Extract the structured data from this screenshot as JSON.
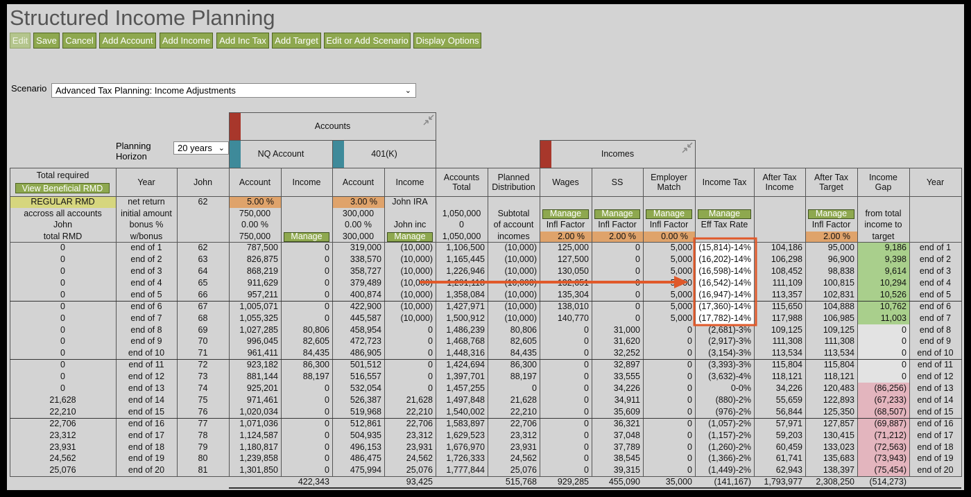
{
  "header": {
    "title": "Structured Income Planning",
    "buttons": [
      "Edit",
      "Save",
      "Cancel",
      "Add Account",
      "Add Income",
      "Add Inc Tax",
      "Add Target",
      "Edit or Add Scenario",
      "Display Options"
    ]
  },
  "scenario": {
    "label": "Scenario",
    "value": "Advanced Tax Planning: Income Adjustments"
  },
  "planning_horizon": {
    "label": "Planning Horizon",
    "value": "20 years"
  },
  "groups": {
    "accounts": "Accounts",
    "nq_account": "NQ Account",
    "k401": "401(K)",
    "incomes": "Incomes"
  },
  "table": {
    "view_rmd_button": "View Beneficial RMD",
    "columns": [
      "Total required",
      "Year",
      "John",
      "Account",
      "Income",
      "Account",
      "Income",
      "Accounts Total",
      "Planned Distribution",
      "Wages",
      "SS",
      "Employer Match",
      "Income Tax",
      "After Tax Income",
      "After Tax Target",
      "Income Gap",
      "Year"
    ],
    "setup_rows": [
      [
        "REGULAR RMD",
        "net return",
        "62",
        "5.00 %",
        null,
        "3.00 %",
        "John IRA",
        null,
        null,
        null,
        null,
        null,
        null,
        null,
        null,
        null,
        null
      ],
      [
        "accross all accounts",
        "initial amount",
        null,
        "750,000",
        null,
        "300,000",
        null,
        "1,050,000",
        "Subtotal",
        "Manage",
        "Manage",
        "Manage",
        "Manage",
        null,
        "Manage",
        "from total",
        null
      ],
      [
        "John",
        "bonus %",
        null,
        "0.00 %",
        null,
        "0.00 %",
        "John inc",
        "0",
        "of account",
        "Infl Factor",
        "Infl Factor",
        "Infl Factor",
        "Eff Tax Rate",
        null,
        "Infl Factor",
        "income to",
        null
      ],
      [
        "total RMD",
        "w/bonus",
        null,
        "750,000",
        "Manage",
        "300,000",
        "Manage",
        "1,050,000",
        "incomes",
        "2.00 %",
        "2.00 %",
        "0.00 %",
        null,
        null,
        "2.00 %",
        "target",
        null
      ]
    ],
    "rows": [
      [
        "0",
        "end of 1",
        "62",
        "787,500",
        "0",
        "319,000",
        "(10,000)",
        "1,106,500",
        "(10,000)",
        "125,000",
        "0",
        "5,000",
        "(15,814)-14%",
        "104,186",
        "95,000",
        "9,186",
        "end of 1"
      ],
      [
        "0",
        "end of 2",
        "63",
        "826,875",
        "0",
        "338,570",
        "(10,000)",
        "1,165,445",
        "(10,000)",
        "127,500",
        "0",
        "5,000",
        "(16,202)-14%",
        "106,298",
        "96,900",
        "9,398",
        "end of 2"
      ],
      [
        "0",
        "end of 3",
        "64",
        "868,219",
        "0",
        "358,727",
        "(10,000)",
        "1,226,946",
        "(10,000)",
        "130,050",
        "0",
        "5,000",
        "(16,598)-14%",
        "108,452",
        "98,838",
        "9,614",
        "end of 3"
      ],
      [
        "0",
        "end of 4",
        "65",
        "911,629",
        "0",
        "379,489",
        "(10,000)",
        "1,291,118",
        "(10,000)",
        "132,651",
        "0",
        "5,000",
        "(16,542)-14%",
        "111,109",
        "100,815",
        "10,294",
        "end of 4"
      ],
      [
        "0",
        "end of 5",
        "66",
        "957,211",
        "0",
        "400,874",
        "(10,000)",
        "1,358,084",
        "(10,000)",
        "135,304",
        "0",
        "5,000",
        "(16,947)-14%",
        "113,357",
        "102,831",
        "10,526",
        "end of 5"
      ],
      [
        "0",
        "end of 6",
        "67",
        "1,005,071",
        "0",
        "422,900",
        "(10,000)",
        "1,427,971",
        "(10,000)",
        "138,010",
        "0",
        "5,000",
        "(17,360)-14%",
        "115,650",
        "104,888",
        "10,762",
        "end of 6"
      ],
      [
        "0",
        "end of 7",
        "68",
        "1,055,325",
        "0",
        "445,587",
        "(10,000)",
        "1,500,912",
        "(10,000)",
        "140,770",
        "0",
        "5,000",
        "(17,782)-14%",
        "117,988",
        "106,985",
        "11,003",
        "end of 7"
      ],
      [
        "0",
        "end of 8",
        "69",
        "1,027,285",
        "80,806",
        "458,954",
        "0",
        "1,486,239",
        "80,806",
        "0",
        "31,000",
        "0",
        "(2,681)-3%",
        "109,125",
        "109,125",
        "0",
        "end of 8"
      ],
      [
        "0",
        "end of 9",
        "70",
        "996,045",
        "82,605",
        "472,723",
        "0",
        "1,468,768",
        "82,605",
        "0",
        "31,620",
        "0",
        "(2,917)-3%",
        "111,308",
        "111,308",
        "0",
        "end of 9"
      ],
      [
        "0",
        "end of 10",
        "71",
        "961,411",
        "84,435",
        "486,905",
        "0",
        "1,448,316",
        "84,435",
        "0",
        "32,252",
        "0",
        "(3,154)-3%",
        "113,534",
        "113,534",
        "0",
        "end of 10"
      ],
      [
        "0",
        "end of 11",
        "72",
        "923,182",
        "86,300",
        "501,512",
        "0",
        "1,424,694",
        "86,300",
        "0",
        "32,897",
        "0",
        "(3,393)-3%",
        "115,804",
        "115,804",
        "0",
        "end of 11"
      ],
      [
        "0",
        "end of 12",
        "73",
        "881,144",
        "88,197",
        "516,557",
        "0",
        "1,397,701",
        "88,197",
        "0",
        "33,555",
        "0",
        "(3,632)-4%",
        "118,121",
        "118,121",
        "0",
        "end of 12"
      ],
      [
        "0",
        "end of 13",
        "74",
        "925,201",
        "0",
        "532,054",
        "0",
        "1,457,255",
        "0",
        "0",
        "34,226",
        "0",
        "0-0%",
        "34,226",
        "120,483",
        "(86,256)",
        "end of 13"
      ],
      [
        "21,628",
        "end of 14",
        "75",
        "971,461",
        "0",
        "526,387",
        "21,628",
        "1,497,848",
        "21,628",
        "0",
        "34,911",
        "0",
        "(880)-2%",
        "55,659",
        "122,893",
        "(67,233)",
        "end of 14"
      ],
      [
        "22,210",
        "end of 15",
        "76",
        "1,020,034",
        "0",
        "519,968",
        "22,210",
        "1,540,002",
        "22,210",
        "0",
        "35,609",
        "0",
        "(976)-2%",
        "56,844",
        "125,350",
        "(68,507)",
        "end of 15"
      ],
      [
        "22,706",
        "end of 16",
        "77",
        "1,071,036",
        "0",
        "512,861",
        "22,706",
        "1,583,897",
        "22,706",
        "0",
        "36,321",
        "0",
        "(1,057)-2%",
        "57,971",
        "127,857",
        "(69,887)",
        "end of 16"
      ],
      [
        "23,312",
        "end of 17",
        "78",
        "1,124,587",
        "0",
        "504,935",
        "23,312",
        "1,629,523",
        "23,312",
        "0",
        "37,048",
        "0",
        "(1,157)-2%",
        "59,203",
        "130,415",
        "(71,212)",
        "end of 17"
      ],
      [
        "23,931",
        "end of 18",
        "79",
        "1,180,817",
        "0",
        "496,153",
        "23,931",
        "1,676,970",
        "23,931",
        "0",
        "37,789",
        "0",
        "(1,260)-2%",
        "60,459",
        "133,023",
        "(72,563)",
        "end of 18"
      ],
      [
        "24,562",
        "end of 19",
        "80",
        "1,239,858",
        "0",
        "486,475",
        "24,562",
        "1,726,333",
        "24,562",
        "0",
        "38,545",
        "0",
        "(1,366)-2%",
        "61,741",
        "135,683",
        "(73,943)",
        "end of 19"
      ],
      [
        "25,076",
        "end of 20",
        "81",
        "1,301,850",
        "0",
        "475,994",
        "25,076",
        "1,777,844",
        "25,076",
        "0",
        "39,315",
        "0",
        "(1,449)-2%",
        "62,943",
        "138,397",
        "(75,454)",
        "end of 20"
      ]
    ],
    "totals": [
      null,
      null,
      null,
      null,
      "422,343",
      null,
      "93,425",
      null,
      "515,768",
      "929,285",
      "455,090",
      "35,000",
      "(141,167)",
      "1,793,977",
      "2,308,250",
      "(514,273)",
      null
    ]
  }
}
